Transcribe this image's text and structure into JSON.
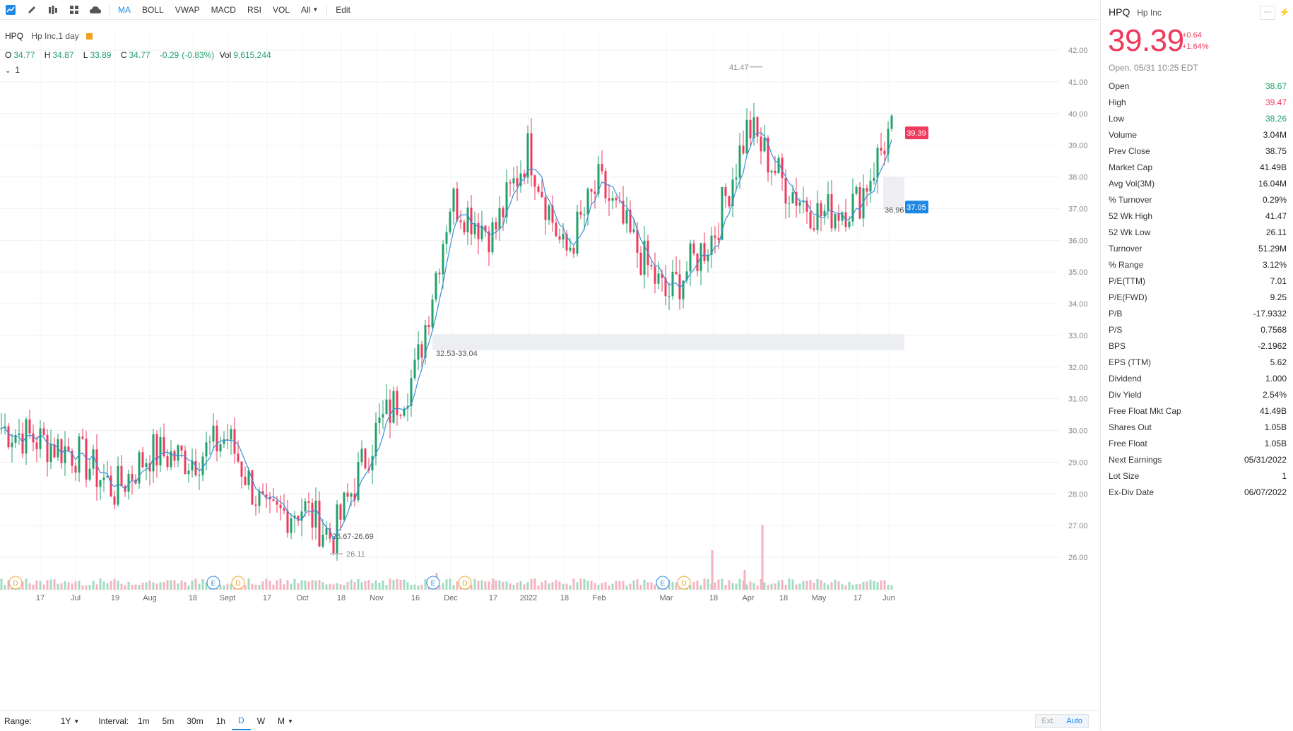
{
  "toolbar": {
    "items": [
      "MA",
      "BOLL",
      "VWAP",
      "MACD",
      "RSI",
      "VOL",
      "All",
      "Edit"
    ],
    "active": "MA"
  },
  "legend": {
    "symbol": "HPQ",
    "name": "Hp Inc,1 day"
  },
  "ohlc": {
    "o_label": "O",
    "o": "34.77",
    "h_label": "H",
    "h": "34.87",
    "l_label": "L",
    "l": "33.89",
    "c_label": "C",
    "c": "34.77",
    "change": "-0.29",
    "change_pct": "(-0.83%)",
    "vol_label": "Vol",
    "vol": "9,615,244"
  },
  "ma_toggle": "1",
  "chart_data": {
    "type": "candlestick",
    "y_ticks": [
      "42.00",
      "41.00",
      "40.00",
      "39.00",
      "38.00",
      "37.00",
      "36.00",
      "35.00",
      "34.00",
      "33.00",
      "32.00",
      "31.00",
      "30.00",
      "29.00",
      "28.00",
      "27.00",
      "26.00"
    ],
    "ylim": [
      25.2,
      42.5
    ],
    "x_ticks": [
      "17",
      "Jul",
      "19",
      "Aug",
      "18",
      "Sept",
      "17",
      "Oct",
      "18",
      "Nov",
      "16",
      "Dec",
      "17",
      "2022",
      "18",
      "Feb",
      "Mar",
      "18",
      "Apr",
      "18",
      "May",
      "17",
      "Jun"
    ],
    "annotations": {
      "high_label": "41.47",
      "low_label": "26.11",
      "gap_zone_1_label": "32.53-33.04",
      "gap_zone_2_label": "26.67-26.69",
      "ref_line_label": "36.96",
      "last_price_tag": "39.39",
      "ma_price_tag": "37.05"
    },
    "event_markers": [
      "D",
      "E",
      "D",
      "E",
      "D",
      "E",
      "D"
    ],
    "series_key_points": [
      {
        "x": "Jun 17",
        "y": 30.1
      },
      {
        "x": "Jul 01",
        "y": 29.3
      },
      {
        "x": "Jul 19",
        "y": 28.1
      },
      {
        "x": "Aug 02",
        "y": 29.3
      },
      {
        "x": "Aug 18",
        "y": 29.1
      },
      {
        "x": "Sep 01",
        "y": 29.8
      },
      {
        "x": "Sep 17",
        "y": 27.2
      },
      {
        "x": "Oct 04",
        "y": 27.6
      },
      {
        "x": "Oct 18",
        "y": 26.6
      },
      {
        "x": "Nov 01",
        "y": 30.0
      },
      {
        "x": "Nov 16",
        "y": 31.8
      },
      {
        "x": "Dec 01",
        "y": 37.3
      },
      {
        "x": "Dec 17",
        "y": 36.2
      },
      {
        "x": "Jan 03",
        "y": 38.9
      },
      {
        "x": "Jan 18",
        "y": 35.5
      },
      {
        "x": "Feb 01",
        "y": 37.8
      },
      {
        "x": "Feb 18",
        "y": 35.8
      },
      {
        "x": "Mar 01",
        "y": 34.2
      },
      {
        "x": "Mar 18",
        "y": 36.2
      },
      {
        "x": "Apr 01",
        "y": 39.6
      },
      {
        "x": "Apr 18",
        "y": 37.8
      },
      {
        "x": "May 02",
        "y": 36.8
      },
      {
        "x": "May 17",
        "y": 37.2
      },
      {
        "x": "May 31",
        "y": 39.39
      }
    ]
  },
  "bottom_bar": {
    "range_label": "Range:",
    "range_value": "1Y",
    "interval_label": "Interval:",
    "intervals": [
      "1m",
      "5m",
      "30m",
      "1h",
      "D",
      "W",
      "M"
    ],
    "active_interval": "D",
    "ext": "Ext.",
    "auto": "Auto"
  },
  "side_panel": {
    "symbol": "HPQ",
    "name": "Hp Inc",
    "more": "···",
    "price": "39.39",
    "change": "+0.64",
    "change_pct": "+1.64%",
    "status": "Open, 05/31 10:25 EDT",
    "rows": [
      {
        "label": "Open",
        "value": "38.67",
        "tone": "up"
      },
      {
        "label": "High",
        "value": "39.47",
        "tone": "down"
      },
      {
        "label": "Low",
        "value": "38.26",
        "tone": "up"
      },
      {
        "label": "Volume",
        "value": "3.04M",
        "tone": ""
      },
      {
        "label": "Prev Close",
        "value": "38.75",
        "tone": ""
      },
      {
        "label": "Market Cap",
        "value": "41.49B",
        "tone": ""
      },
      {
        "label": "Avg Vol(3M)",
        "value": "16.04M",
        "tone": ""
      },
      {
        "label": "% Turnover",
        "value": "0.29%",
        "tone": ""
      },
      {
        "label": "52 Wk High",
        "value": "41.47",
        "tone": ""
      },
      {
        "label": "52 Wk Low",
        "value": "26.11",
        "tone": ""
      },
      {
        "label": "Turnover",
        "value": "51.29M",
        "tone": ""
      },
      {
        "label": "% Range",
        "value": "3.12%",
        "tone": ""
      },
      {
        "label": "P/E(TTM)",
        "value": "7.01",
        "tone": ""
      },
      {
        "label": "P/E(FWD)",
        "value": "9.25",
        "tone": ""
      },
      {
        "label": "P/B",
        "value": "-17.9332",
        "tone": ""
      },
      {
        "label": "P/S",
        "value": "0.7568",
        "tone": ""
      },
      {
        "label": "BPS",
        "value": "-2.1962",
        "tone": ""
      },
      {
        "label": "EPS (TTM)",
        "value": "5.62",
        "tone": ""
      },
      {
        "label": "Dividend",
        "value": "1.000",
        "tone": ""
      },
      {
        "label": "Div Yield",
        "value": "2.54%",
        "tone": ""
      },
      {
        "label": "Free Float Mkt Cap",
        "value": "41.49B",
        "tone": ""
      },
      {
        "label": "Shares Out",
        "value": "1.05B",
        "tone": ""
      },
      {
        "label": "Free Float",
        "value": "1.05B",
        "tone": ""
      },
      {
        "label": "Next Earnings",
        "value": "05/31/2022",
        "tone": ""
      },
      {
        "label": "Lot Size",
        "value": "1",
        "tone": ""
      },
      {
        "label": "Ex-Div Date",
        "value": "06/07/2022",
        "tone": ""
      }
    ]
  },
  "colors": {
    "up": "#22a06b",
    "down": "#ef3a5d",
    "ma": "#3b8fd9",
    "accent": "#1e88e5",
    "zone": "#eceef1"
  }
}
